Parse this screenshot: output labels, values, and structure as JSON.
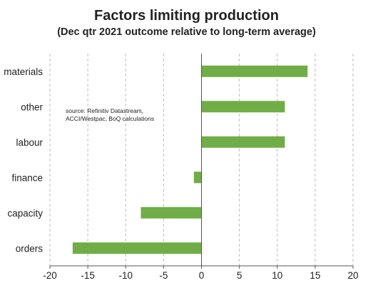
{
  "chart_data": {
    "type": "bar",
    "orientation": "horizontal",
    "title": "Factors limiting production",
    "subtitle": "(Dec qtr 2021 outcome relative to long-term average)",
    "categories": [
      "materials",
      "other",
      "labour",
      "finance",
      "capacity",
      "orders"
    ],
    "values": [
      14,
      11,
      11,
      -1,
      -8,
      -17
    ],
    "xlim": [
      -20,
      20
    ],
    "x_ticks": [
      -20,
      -15,
      -10,
      -5,
      0,
      5,
      10,
      15,
      20
    ],
    "grid": "vertical dashed",
    "bar_color": "#70ad47",
    "annotation": [
      "source:  Refinitiv Datastream,",
      "ACCI/Westpac, BoQ calculations"
    ]
  }
}
